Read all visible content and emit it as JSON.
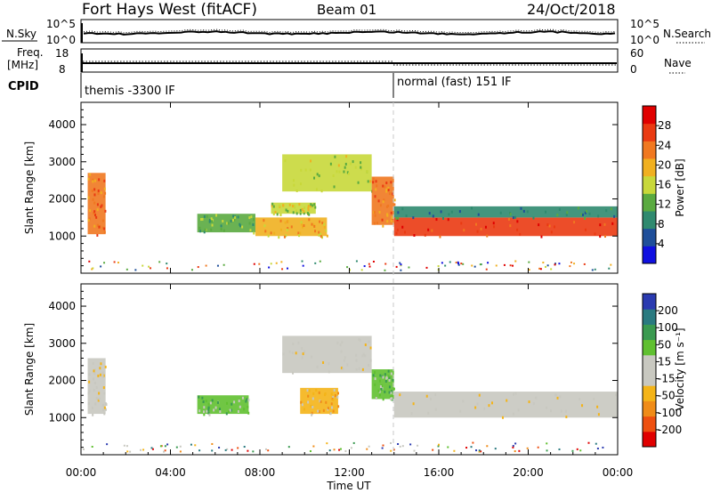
{
  "header": {
    "title": "Fort Hays West (fitACF)",
    "beam": "Beam 01",
    "date": "24/Oct/2018"
  },
  "status_panels": {
    "nsky_label": "N.Sky",
    "nsearch_label": "N.Search",
    "nsky_ticks": [
      "10^5",
      "10^0"
    ],
    "nsearch_ticks": [
      "10^5",
      "10^0"
    ],
    "freq_label_line1": "Freq.",
    "freq_label_line2": "[MHz]",
    "freq_ticks": [
      "18",
      "8"
    ],
    "nave_label": "Nave",
    "nave_ticks": [
      "60",
      "0"
    ],
    "cpid_label": "CPID",
    "cpid_modes": [
      {
        "text": "themis -3300 IF",
        "start_hour": 0
      },
      {
        "text": "normal (fast) 151 IF",
        "start_hour": 14
      }
    ]
  },
  "colors": {
    "power": [
      "#1010e0",
      "#1f4f9a",
      "#2f8a6f",
      "#5aaa40",
      "#c8d83a",
      "#f0b020",
      "#f07820",
      "#ea3a12",
      "#e00000"
    ],
    "velocity": [
      "#e00000",
      "#ee5010",
      "#f08c18",
      "#f4b418",
      "#c8c8c0",
      "#c8c8c0",
      "#60c030",
      "#3a9a50",
      "#2a7a80",
      "#2a3ab0"
    ]
  },
  "chart_data": [
    {
      "type": "heatmap",
      "panel": "power",
      "ylabel": "Slant Range [km]",
      "ylim": [
        0,
        4600
      ],
      "y_ticks": [
        1000,
        2000,
        3000,
        4000
      ],
      "xlim": [
        0,
        24
      ],
      "colorbar_label": "Power [dB]",
      "colorbar_ticks": [
        "4",
        "8",
        "12",
        "16",
        "20",
        "24",
        "28"
      ],
      "regions": [
        {
          "t": [
            0.3,
            1.1
          ],
          "r": [
            1050,
            2700
          ],
          "level": 6
        },
        {
          "t": [
            5.2,
            7.8
          ],
          "r": [
            1100,
            1600
          ],
          "level": 3
        },
        {
          "t": [
            7.8,
            11.0
          ],
          "r": [
            1000,
            1500
          ],
          "level": 5
        },
        {
          "t": [
            8.5,
            10.5
          ],
          "r": [
            1600,
            1900
          ],
          "level": 4
        },
        {
          "t": [
            9.0,
            13.0
          ],
          "r": [
            2200,
            3200
          ],
          "level": 4
        },
        {
          "t": [
            13.0,
            14.0
          ],
          "r": [
            1300,
            2600
          ],
          "level": 6
        },
        {
          "t": [
            14.0,
            24.0
          ],
          "r": [
            1000,
            1500
          ],
          "level": 7
        },
        {
          "t": [
            14.0,
            24.0
          ],
          "r": [
            1500,
            1800
          ],
          "level": 2
        }
      ]
    },
    {
      "type": "heatmap",
      "panel": "velocity",
      "ylabel": "Slant Range [km]",
      "xlabel": "Time UT",
      "ylim": [
        0,
        4600
      ],
      "y_ticks": [
        1000,
        2000,
        3000,
        4000
      ],
      "xlim": [
        0,
        24
      ],
      "x_ticks": [
        "00:00",
        "04:00",
        "08:00",
        "12:00",
        "16:00",
        "20:00",
        "00:00"
      ],
      "colorbar_label": "Velocity [m s⁻¹]",
      "colorbar_ticks": [
        "-200",
        "-100",
        "-50",
        "-15",
        "15",
        "50",
        "100",
        "200"
      ],
      "regions": [
        {
          "t": [
            0.3,
            1.1
          ],
          "r": [
            1100,
            2600
          ],
          "level": 4
        },
        {
          "t": [
            5.2,
            7.5
          ],
          "r": [
            1100,
            1600
          ],
          "level": 6
        },
        {
          "t": [
            9.8,
            11.5
          ],
          "r": [
            1100,
            1800
          ],
          "level": 3
        },
        {
          "t": [
            9.0,
            13.0
          ],
          "r": [
            2200,
            3200
          ],
          "level": 4
        },
        {
          "t": [
            13.0,
            14.0
          ],
          "r": [
            1500,
            2300
          ],
          "level": 6
        },
        {
          "t": [
            14.0,
            24.0
          ],
          "r": [
            1000,
            1700
          ],
          "level": 4
        }
      ]
    }
  ]
}
